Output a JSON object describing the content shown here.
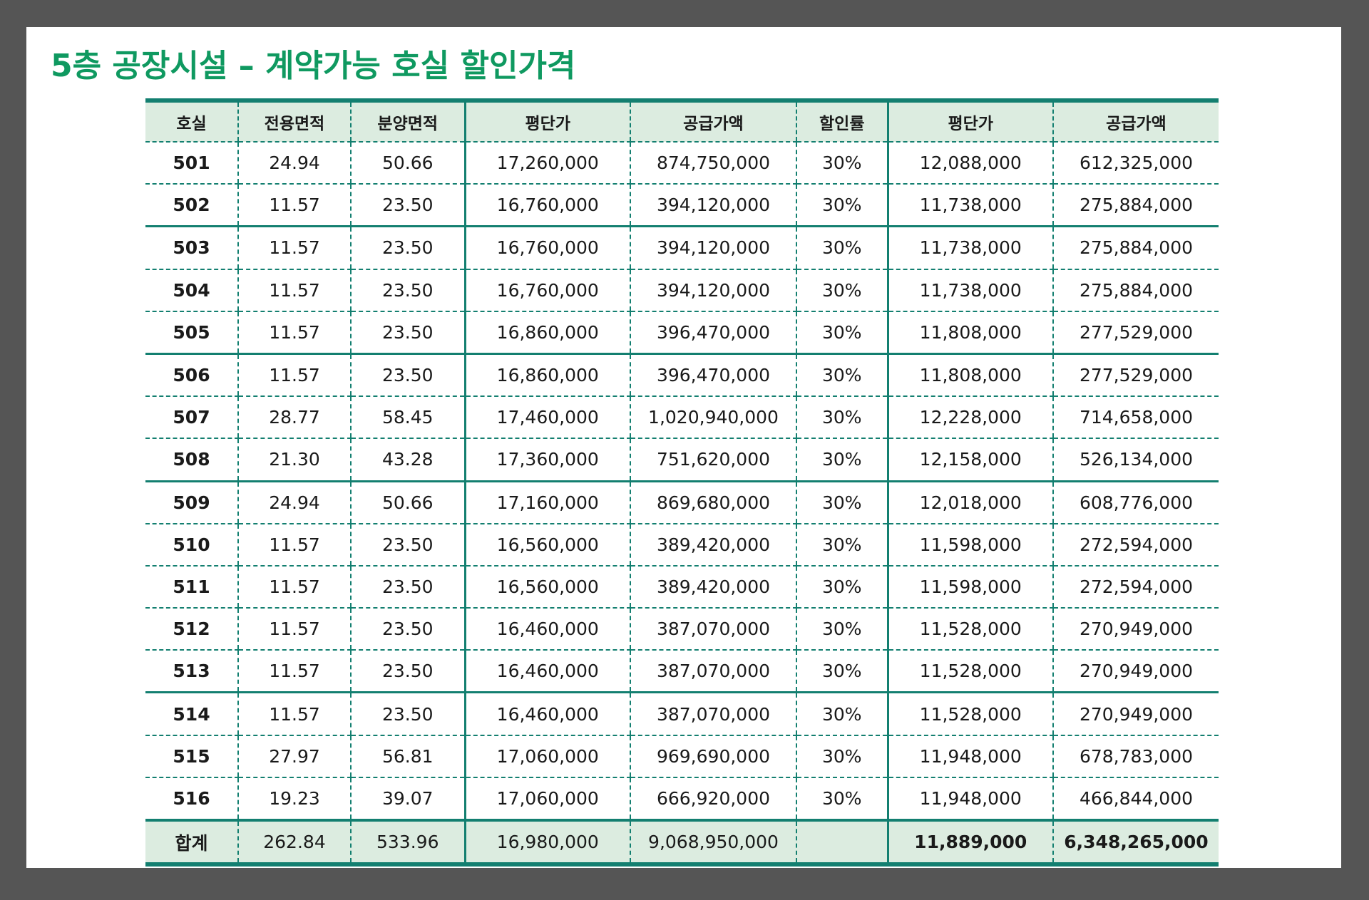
{
  "title": "5층 공장시설 – 계약가능 호실 할인가격",
  "table": {
    "headers": [
      "호실",
      "전용면적",
      "분양면적",
      "평단가",
      "공급가액",
      "할인률",
      "평단가",
      "공급가액"
    ],
    "rows": [
      [
        "501",
        "24.94",
        "50.66",
        "17,260,000",
        "874,750,000",
        "30%",
        "12,088,000",
        "612,325,000"
      ],
      [
        "502",
        "11.57",
        "23.50",
        "16,760,000",
        "394,120,000",
        "30%",
        "11,738,000",
        "275,884,000"
      ],
      [
        "503",
        "11.57",
        "23.50",
        "16,760,000",
        "394,120,000",
        "30%",
        "11,738,000",
        "275,884,000"
      ],
      [
        "504",
        "11.57",
        "23.50",
        "16,760,000",
        "394,120,000",
        "30%",
        "11,738,000",
        "275,884,000"
      ],
      [
        "505",
        "11.57",
        "23.50",
        "16,860,000",
        "396,470,000",
        "30%",
        "11,808,000",
        "277,529,000"
      ],
      [
        "506",
        "11.57",
        "23.50",
        "16,860,000",
        "396,470,000",
        "30%",
        "11,808,000",
        "277,529,000"
      ],
      [
        "507",
        "28.77",
        "58.45",
        "17,460,000",
        "1,020,940,000",
        "30%",
        "12,228,000",
        "714,658,000"
      ],
      [
        "508",
        "21.30",
        "43.28",
        "17,360,000",
        "751,620,000",
        "30%",
        "12,158,000",
        "526,134,000"
      ],
      [
        "509",
        "24.94",
        "50.66",
        "17,160,000",
        "869,680,000",
        "30%",
        "12,018,000",
        "608,776,000"
      ],
      [
        "510",
        "11.57",
        "23.50",
        "16,560,000",
        "389,420,000",
        "30%",
        "11,598,000",
        "272,594,000"
      ],
      [
        "511",
        "11.57",
        "23.50",
        "16,560,000",
        "389,420,000",
        "30%",
        "11,598,000",
        "272,594,000"
      ],
      [
        "512",
        "11.57",
        "23.50",
        "16,460,000",
        "387,070,000",
        "30%",
        "11,528,000",
        "270,949,000"
      ],
      [
        "513",
        "11.57",
        "23.50",
        "16,460,000",
        "387,070,000",
        "30%",
        "11,528,000",
        "270,949,000"
      ],
      [
        "514",
        "11.57",
        "23.50",
        "16,460,000",
        "387,070,000",
        "30%",
        "11,528,000",
        "270,949,000"
      ],
      [
        "515",
        "27.97",
        "56.81",
        "17,060,000",
        "969,690,000",
        "30%",
        "11,948,000",
        "678,783,000"
      ],
      [
        "516",
        "19.23",
        "39.07",
        "17,060,000",
        "666,920,000",
        "30%",
        "11,948,000",
        "466,844,000"
      ]
    ],
    "total": [
      "합계",
      "262.84",
      "533.96",
      "16,980,000",
      "9,068,950,000",
      "",
      "11,889,000",
      "6,348,265,000"
    ]
  },
  "colors": {
    "title": "#0f9960",
    "rule": "#137f70",
    "header_bg": "#dcece0",
    "frame": "#555555"
  }
}
